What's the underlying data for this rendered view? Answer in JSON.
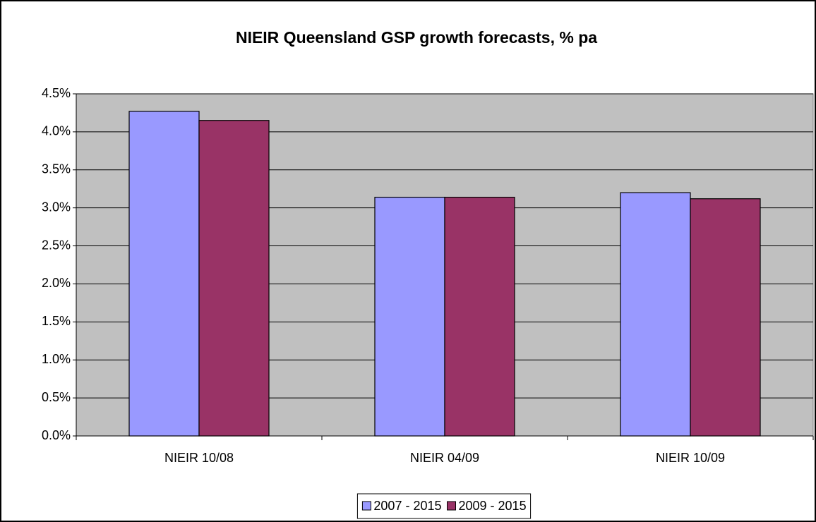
{
  "chart_data": {
    "type": "bar",
    "title": "NIEIR Queensland GSP growth forecasts, % pa",
    "categories": [
      "NIEIR 10/08",
      "NIEIR 04/09",
      "NIEIR 10/09"
    ],
    "series": [
      {
        "name": "2007 - 2015",
        "color": "#9999ff",
        "values": [
          4.27,
          3.14,
          3.2
        ]
      },
      {
        "name": "2009 - 2015",
        "color": "#993366",
        "values": [
          4.15,
          3.14,
          3.12
        ]
      }
    ],
    "ylim": [
      0,
      4.5
    ],
    "yticks": [
      {
        "value": 0,
        "label": "0.0%"
      },
      {
        "value": 0.5,
        "label": "0.5%"
      },
      {
        "value": 1,
        "label": "1.0%"
      },
      {
        "value": 1.5,
        "label": "1.5%"
      },
      {
        "value": 2,
        "label": "2.0%"
      },
      {
        "value": 2.5,
        "label": "2.5%"
      },
      {
        "value": 3,
        "label": "3.0%"
      },
      {
        "value": 3.5,
        "label": "3.5%"
      },
      {
        "value": 4,
        "label": "4.0%"
      },
      {
        "value": 4.5,
        "label": "4.5%"
      }
    ],
    "grid": true,
    "legend": "bottom"
  }
}
